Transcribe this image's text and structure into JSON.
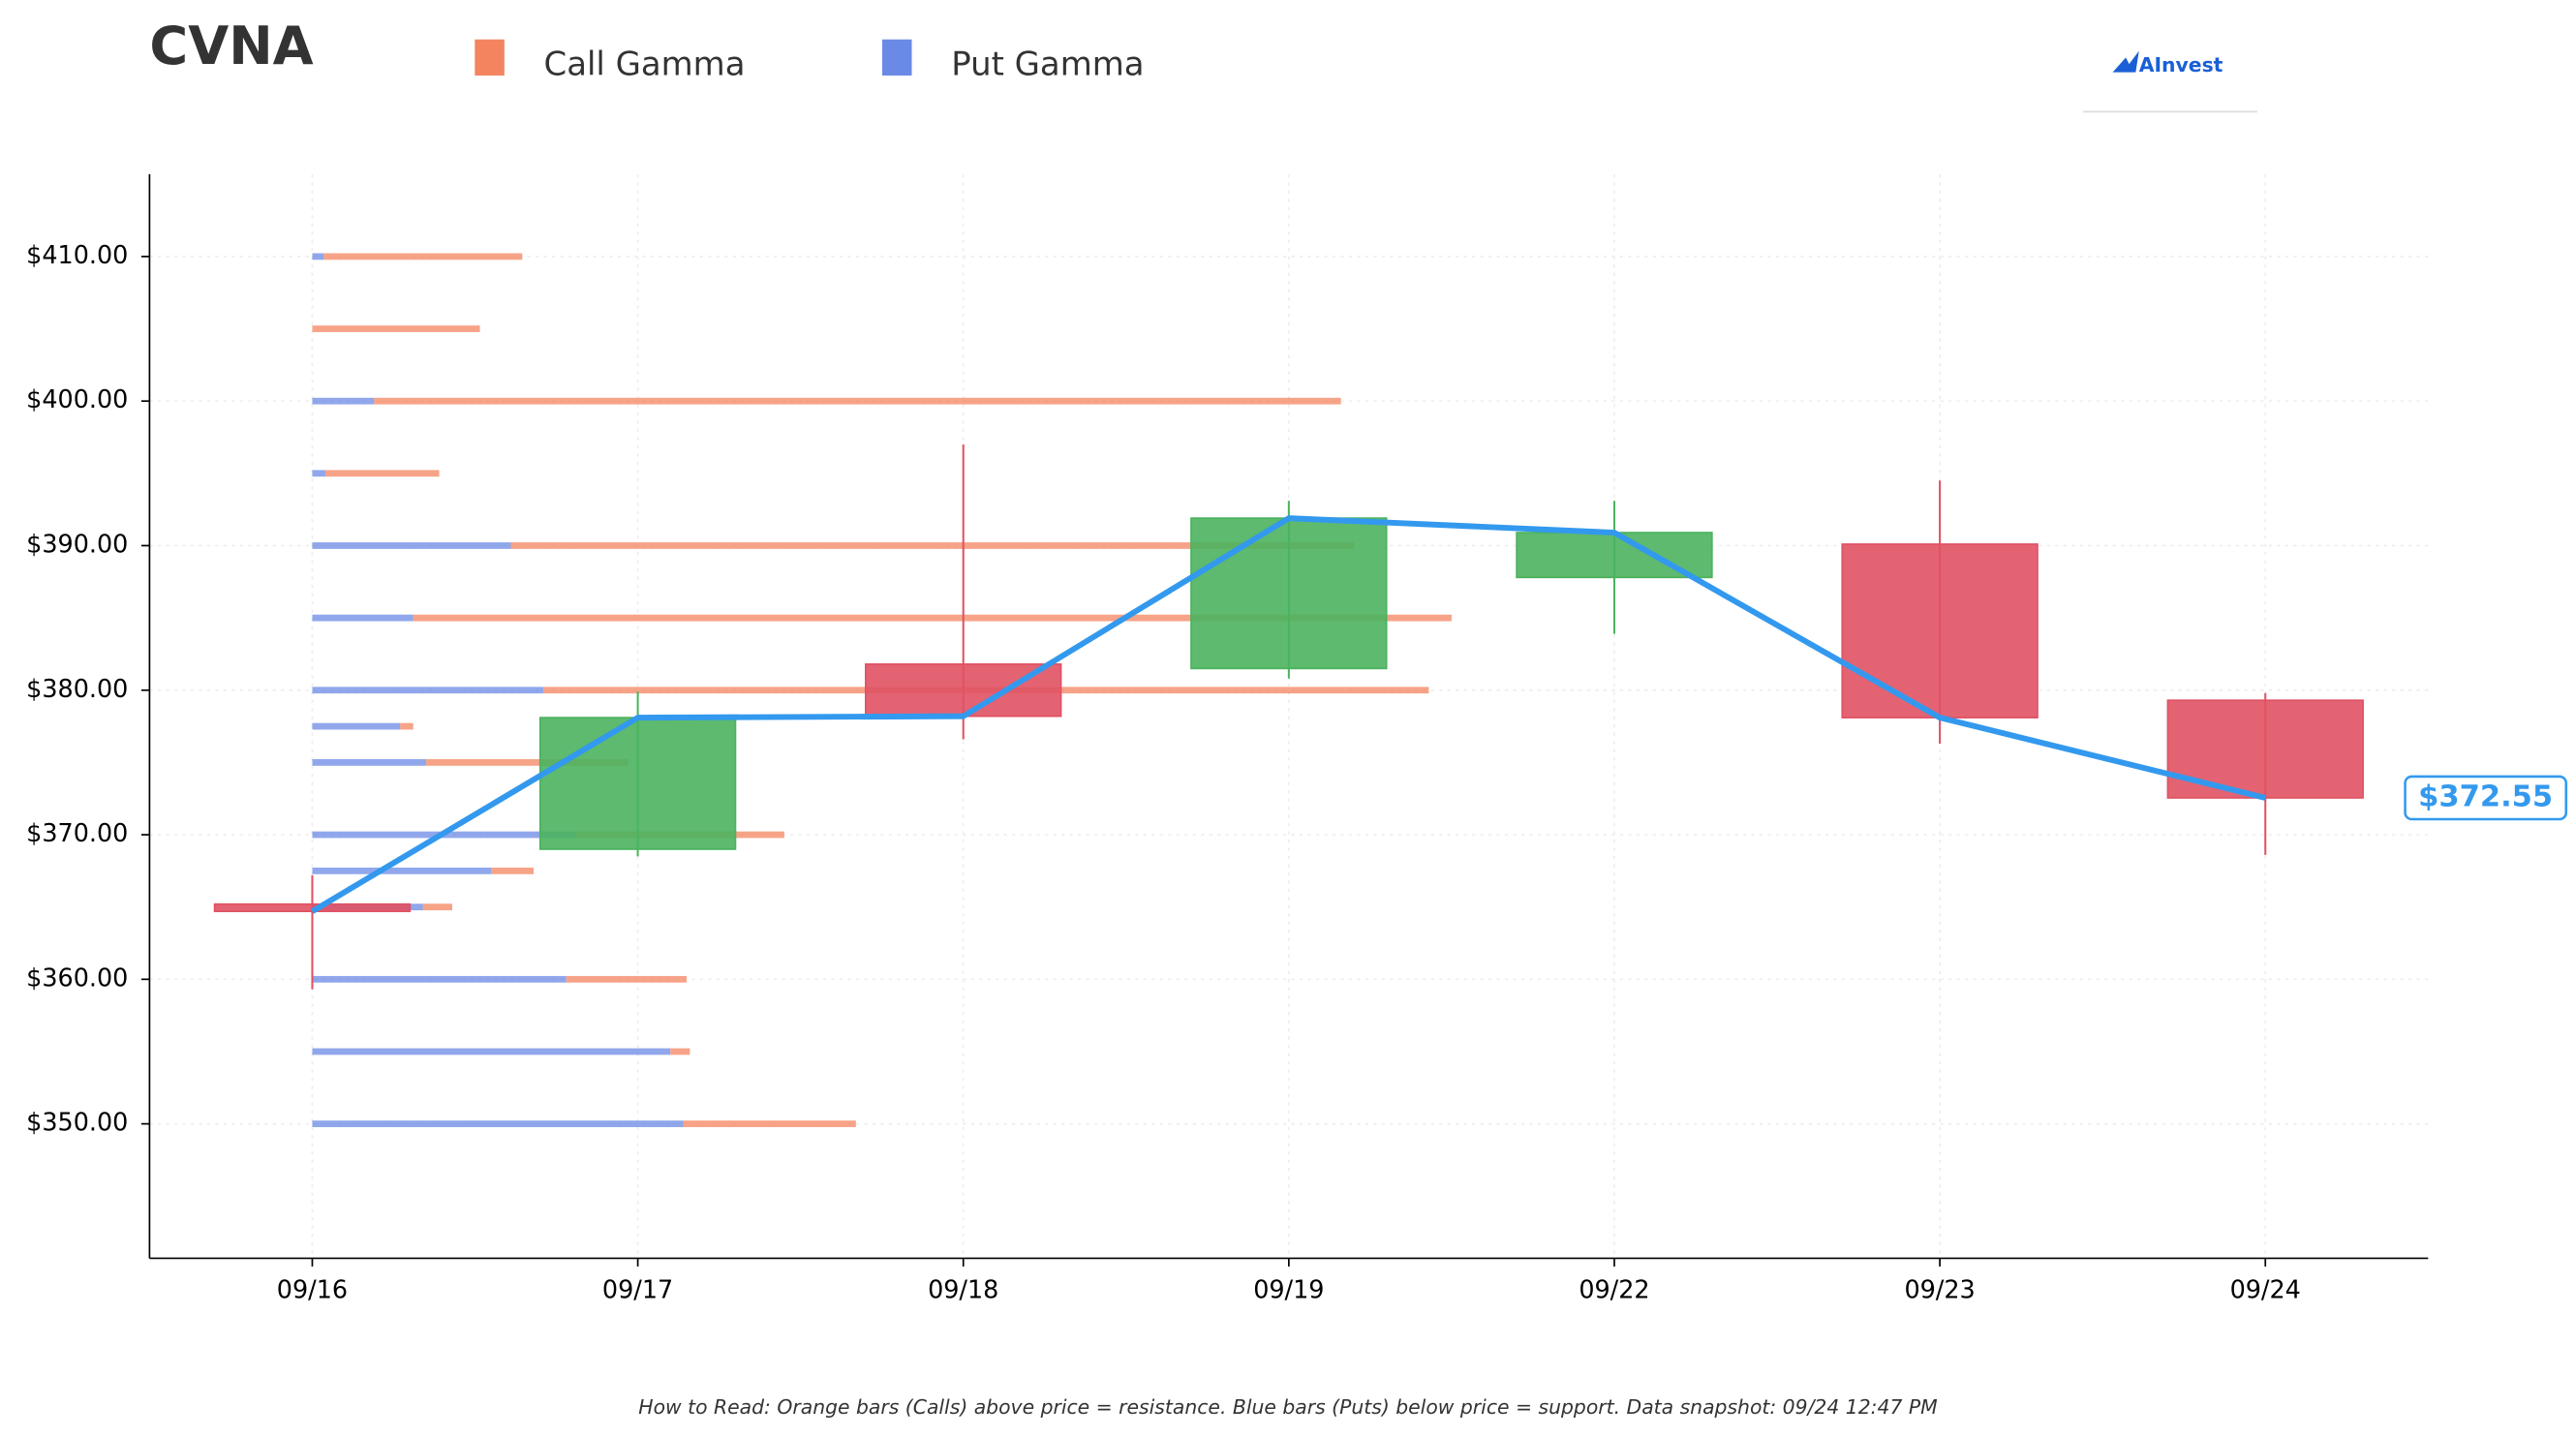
{
  "chart_data": {
    "type": "candlestick",
    "title": "CVNA",
    "brand": "AInvest",
    "footer": "How to Read: Orange bars (Calls) above price = resistance. Blue bars (Puts) below price = support. Data snapshot: 09/24 12:47 PM",
    "categories": [
      "09/16",
      "09/17",
      "09/18",
      "09/19",
      "09/22",
      "09/23",
      "09/24"
    ],
    "open": [
      365.2,
      369.0,
      381.8,
      381.5,
      387.8,
      390.1,
      379.3
    ],
    "high": [
      367.2,
      379.9,
      397.0,
      393.1,
      393.1,
      394.5,
      379.8
    ],
    "low": [
      359.3,
      368.5,
      376.6,
      380.8,
      383.9,
      376.3,
      368.6
    ],
    "close": [
      364.7,
      378.1,
      378.2,
      391.9,
      390.9,
      378.1,
      372.55
    ],
    "up_color": "#4bb35e",
    "down_color": "#e05264",
    "line_color": "#3399ee",
    "last_price": {
      "value": 372.55,
      "label": "$372.55"
    },
    "ylim": [
      340.7,
      415.7
    ],
    "yticks": [
      {
        "value": 350,
        "label": "$350.00"
      },
      {
        "value": 360,
        "label": "$360.00"
      },
      {
        "value": 370,
        "label": "$370.00"
      },
      {
        "value": 380,
        "label": "$380.00"
      },
      {
        "value": 390,
        "label": "$390.00"
      },
      {
        "value": 400,
        "label": "$400.00"
      },
      {
        "value": 410,
        "label": "$410.00"
      }
    ],
    "grid": true,
    "gamma": {
      "strikes": [
        410,
        405,
        400,
        395,
        390,
        385,
        380,
        377.5,
        375,
        370,
        367.5,
        365,
        360,
        355,
        350
      ],
      "series": [
        {
          "name": "Put Gamma",
          "color": "#6b8ae6",
          "values": [
            0.035,
            0,
            0.19,
            0.04,
            0.61,
            0.31,
            0.71,
            0.27,
            0.35,
            0.81,
            0.55,
            0.34,
            0.78,
            1.1,
            1.14
          ]
        },
        {
          "name": "Call Gamma",
          "color": "#f4845f",
          "values": [
            0.61,
            0.515,
            2.97,
            0.35,
            2.59,
            3.19,
            2.72,
            0.04,
            0.62,
            0.64,
            0.13,
            0.09,
            0.37,
            0.06,
            0.53
          ]
        }
      ]
    }
  }
}
